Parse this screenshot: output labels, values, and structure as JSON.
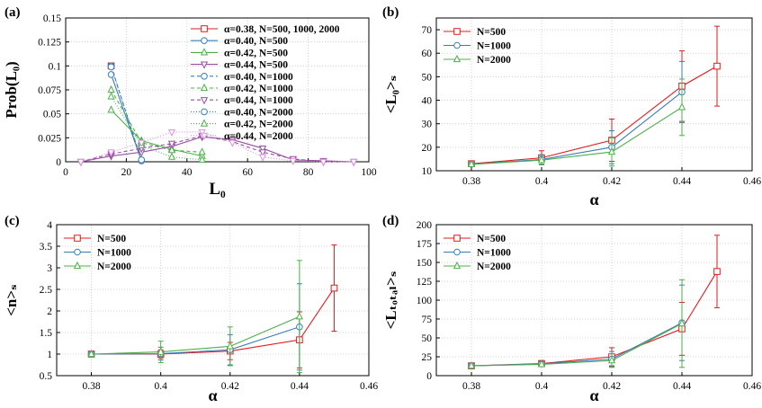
{
  "figure": {
    "layout": "2x2 panels"
  },
  "chart_data": [
    {
      "panel": "(a)",
      "type": "line",
      "xlabel": "L₀",
      "ylabel": "Prob(L₀)",
      "xlim": [
        0,
        100
      ],
      "ylim": [
        0,
        0.15
      ],
      "xticks": [
        "0",
        "20",
        "40",
        "60",
        "80",
        "100"
      ],
      "yticks": [
        "0",
        "0.025",
        "0.05",
        "0.075",
        "0.1",
        "0.125",
        "0.15"
      ],
      "grid": true,
      "legend_position": "top-right",
      "series": [
        {
          "name": "α=0.38, N=500, 1000, 2000",
          "color": "#e41a1c",
          "marker": "square",
          "dash": "solid",
          "x": [
            15
          ],
          "y": [
            0.1
          ]
        },
        {
          "name": "α=0.40, N=500",
          "color": "#377eb8",
          "marker": "circle",
          "dash": "solid",
          "x": [
            15,
            25
          ],
          "y": [
            0.091,
            0.001
          ]
        },
        {
          "name": "α=0.42, N=500",
          "color": "#4daf4a",
          "marker": "triangle-up",
          "dash": "solid",
          "x": [
            15,
            25,
            35,
            45
          ],
          "y": [
            0.054,
            0.022,
            0.013,
            0.006
          ]
        },
        {
          "name": "α=0.44, N=500",
          "color": "#984ea3",
          "marker": "triangle-down",
          "dash": "solid",
          "x": [
            5,
            15,
            25,
            35,
            45,
            55,
            65,
            75,
            85,
            95
          ],
          "y": [
            0,
            0.006,
            0.01,
            0.016,
            0.026,
            0.023,
            0.014,
            0.002,
            0.001,
            0.0
          ]
        },
        {
          "name": "α=0.40, N=1000",
          "color": "#377eb8",
          "marker": "circle",
          "dash": "4,3",
          "x": [
            15,
            25
          ],
          "y": [
            0.1,
            0.001
          ]
        },
        {
          "name": "α=0.42, N=1000",
          "color": "#4daf4a",
          "marker": "triangle-up",
          "dash": "4,3",
          "x": [
            15,
            25,
            35,
            45
          ],
          "y": [
            0.075,
            0.02,
            0.012,
            0.01
          ]
        },
        {
          "name": "α=0.44, N=1000",
          "color": "#984ea3",
          "marker": "triangle-down",
          "dash": "4,3",
          "x": [
            5,
            15,
            25,
            35,
            45,
            55,
            65,
            75,
            85,
            95
          ],
          "y": [
            0,
            0.008,
            0.014,
            0.019,
            0.027,
            0.021,
            0.01,
            0.003,
            0.0,
            0.0
          ]
        },
        {
          "name": "α=0.40, N=2000",
          "color": "#377eb8",
          "marker": "circle",
          "dash": "1,2",
          "x": [
            15,
            25
          ],
          "y": [
            0.099,
            0.002
          ]
        },
        {
          "name": "α=0.42, N=2000",
          "color": "#4daf4a",
          "marker": "triangle-up",
          "dash": "1,2",
          "x": [
            15,
            25,
            35,
            45
          ],
          "y": [
            0.068,
            0.017,
            0.005,
            0.002
          ]
        },
        {
          "name": "α=0.44, N=2000",
          "color": "#e08fe0",
          "marker": "triangle-down",
          "dash": "1,2",
          "x": [
            5,
            15,
            25,
            35,
            45,
            55,
            65,
            75,
            85,
            95
          ],
          "y": [
            0,
            0.01,
            0.02,
            0.031,
            0.031,
            0.02,
            0.005,
            0.001,
            0.0,
            0.0
          ]
        }
      ]
    },
    {
      "panel": "(b)",
      "type": "line",
      "xlabel": "α",
      "ylabel": "<L₀>ₛ",
      "xlim": [
        0.37,
        0.46
      ],
      "ylim": [
        10,
        75
      ],
      "xticks": [
        "0.38",
        "0.4",
        "0.42",
        "0.44",
        "0.46"
      ],
      "yticks": [
        "10",
        "20",
        "30",
        "40",
        "50",
        "60",
        "70"
      ],
      "grid": true,
      "legend_position": "top-left",
      "series": [
        {
          "name": "N=500",
          "color": "#e41a1c",
          "marker": "square",
          "x": [
            0.38,
            0.4,
            0.42,
            0.44,
            0.45
          ],
          "y": [
            13,
            15.5,
            23,
            46,
            54.5
          ],
          "err": [
            0.5,
            3,
            9,
            15,
            17
          ]
        },
        {
          "name": "N=1000",
          "color": "#377eb8",
          "marker": "circle",
          "x": [
            0.38,
            0.4,
            0.42,
            0.44
          ],
          "y": [
            12.8,
            14.8,
            20,
            43.5
          ],
          "err": [
            0.5,
            2,
            7,
            13
          ]
        },
        {
          "name": "N=2000",
          "color": "#4daf4a",
          "marker": "triangle-up",
          "x": [
            0.38,
            0.4,
            0.42,
            0.44
          ],
          "y": [
            12.7,
            14.5,
            18,
            37
          ],
          "err": [
            0.5,
            2,
            6,
            12
          ]
        }
      ]
    },
    {
      "panel": "(c)",
      "type": "line",
      "xlabel": "α",
      "ylabel": "<n>ₛ",
      "xlim": [
        0.37,
        0.46
      ],
      "ylim": [
        0.5,
        4
      ],
      "xticks": [
        "0.38",
        "0.4",
        "0.42",
        "0.44",
        "0.46"
      ],
      "yticks": [
        "0.5",
        "1",
        "1.5",
        "2",
        "2.5",
        "3",
        "3.5",
        "4"
      ],
      "grid": true,
      "legend_position": "top-left",
      "series": [
        {
          "name": "N=500",
          "color": "#e41a1c",
          "marker": "square",
          "x": [
            0.38,
            0.4,
            0.42,
            0.44,
            0.45
          ],
          "y": [
            1.0,
            1.0,
            1.07,
            1.33,
            2.53
          ],
          "err": [
            0.02,
            0.1,
            0.2,
            0.65,
            1.0
          ]
        },
        {
          "name": "N=1000",
          "color": "#377eb8",
          "marker": "circle",
          "x": [
            0.38,
            0.4,
            0.42,
            0.44
          ],
          "y": [
            1.0,
            1.01,
            1.1,
            1.63
          ],
          "err": [
            0.02,
            0.15,
            0.35,
            1.0
          ]
        },
        {
          "name": "N=2000",
          "color": "#4daf4a",
          "marker": "triangle-up",
          "x": [
            0.38,
            0.4,
            0.42,
            0.44
          ],
          "y": [
            1.0,
            1.05,
            1.18,
            1.87
          ],
          "err": [
            0.02,
            0.25,
            0.45,
            1.3
          ]
        }
      ]
    },
    {
      "panel": "(d)",
      "type": "line",
      "xlabel": "α",
      "ylabel": "<Lₜₒₜₐₗ>ₛ",
      "xlim": [
        0.37,
        0.46
      ],
      "ylim": [
        0,
        200
      ],
      "xticks": [
        "0.38",
        "0.4",
        "0.42",
        "0.44",
        "0.46"
      ],
      "yticks": [
        "0",
        "25",
        "50",
        "75",
        "100",
        "125",
        "150",
        "175",
        "200"
      ],
      "grid": true,
      "legend_position": "top-left",
      "series": [
        {
          "name": "N=500",
          "color": "#e41a1c",
          "marker": "square",
          "x": [
            0.38,
            0.4,
            0.42,
            0.44,
            0.45
          ],
          "y": [
            13,
            16,
            25,
            62,
            138
          ],
          "err": [
            1,
            4,
            12,
            35,
            48
          ]
        },
        {
          "name": "N=1000",
          "color": "#377eb8",
          "marker": "circle",
          "x": [
            0.38,
            0.4,
            0.42,
            0.44
          ],
          "y": [
            13,
            15.5,
            22,
            70
          ],
          "err": [
            1,
            3,
            10,
            50
          ]
        },
        {
          "name": "N=2000",
          "color": "#4daf4a",
          "marker": "triangle-up",
          "x": [
            0.38,
            0.4,
            0.42,
            0.44
          ],
          "y": [
            13,
            15,
            20,
            69
          ],
          "err": [
            1,
            3,
            9,
            58
          ]
        }
      ]
    }
  ]
}
